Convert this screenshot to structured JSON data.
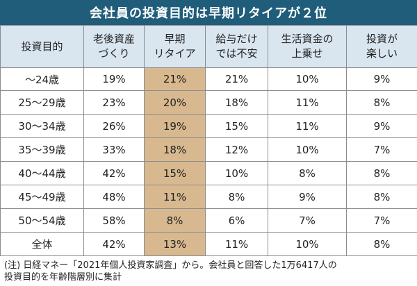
{
  "title": "会社員の投資目的は早期リタイアが２位",
  "header": {
    "col0": "投資目的",
    "col1": [
      "老後資産",
      "づくり"
    ],
    "col2": [
      "早期",
      "リタイア"
    ],
    "col3": [
      "給与だけ",
      "では不安"
    ],
    "col4": [
      "生活資金の",
      "上乗せ"
    ],
    "col5": [
      "投資が",
      "楽しい"
    ]
  },
  "rows": [
    {
      "label": "～24歳",
      "v": [
        "19%",
        "21%",
        "21%",
        "10%",
        "9%"
      ]
    },
    {
      "label": "25～29歳",
      "v": [
        "23%",
        "20%",
        "18%",
        "11%",
        "8%"
      ]
    },
    {
      "label": "30～34歳",
      "v": [
        "26%",
        "19%",
        "15%",
        "11%",
        "9%"
      ]
    },
    {
      "label": "35～39歳",
      "v": [
        "33%",
        "18%",
        "12%",
        "10%",
        "7%"
      ]
    },
    {
      "label": "40～44歳",
      "v": [
        "42%",
        "15%",
        "10%",
        "8%",
        "8%"
      ]
    },
    {
      "label": "45～49歳",
      "v": [
        "48%",
        "11%",
        "8%",
        "9%",
        "8%"
      ]
    },
    {
      "label": "50～54歳",
      "v": [
        "58%",
        "8%",
        "6%",
        "7%",
        "7%"
      ]
    },
    {
      "label": "全体",
      "v": [
        "42%",
        "13%",
        "11%",
        "10%",
        "8%"
      ]
    }
  ],
  "note": {
    "line1": "(注) 日経マネー「2021年個人投資家調査」から。会社員と回答した1万6417人の",
    "line2": "投資目的を年齢階層別に集計"
  },
  "colors": {
    "title_bg": "#1f5d7a",
    "header_bg": "#d9e6f0",
    "highlight": "#d8b98f"
  }
}
